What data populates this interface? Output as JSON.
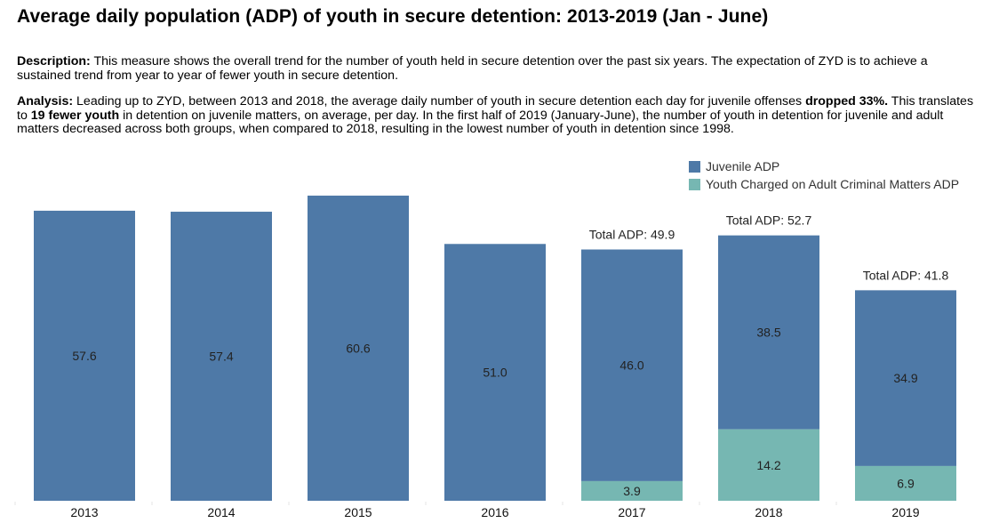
{
  "page": {
    "title": "Average daily population (ADP) of youth in secure detention: 2013-2019 (Jan - June)",
    "description": {
      "label": "Description:",
      "text": " This measure shows the overall trend for the number of youth held in secure detention over the past six years.  The expectation of ZYD is to achieve a sustained trend from year to year of fewer youth in secure detention."
    },
    "analysis": {
      "label": "Analysis:",
      "text1": " Leading up to ZYD, between 2013 and 2018, the average daily number of youth in secure detention each day for juvenile offenses ",
      "bold1": "dropped 33%.",
      "text2": " This translates to ",
      "bold2": "19 fewer youth",
      "text3": " in detention on juvenile matters, on average, per day. In the first half of 2019 (January-June), the number of youth in detention for juvenile and adult matters decreased across both groups, when compared to 2018, resulting in the lowest number of youth in detention since 1998."
    }
  },
  "chart_data": {
    "type": "bar",
    "stacked": true,
    "title": "Average daily population (ADP) of youth in secure detention: 2013-2019 (Jan - June)",
    "xlabel": "",
    "ylabel": "",
    "ylim": [
      0,
      62
    ],
    "grid": false,
    "legend_position": "top-right",
    "categories": [
      "2013",
      "2014",
      "2015",
      "2016",
      "2017",
      "2018",
      "2019"
    ],
    "series": [
      {
        "name": "Juvenile ADP",
        "color": "#4e79a7",
        "values": [
          57.6,
          57.4,
          60.6,
          51.0,
          46.0,
          38.5,
          34.9
        ],
        "labels": [
          "57.6",
          "57.4",
          "60.6",
          "51.0",
          "46.0",
          "38.5",
          "34.9"
        ]
      },
      {
        "name": "Youth Charged on Adult Criminal Matters ADP",
        "color": "#76b7b2",
        "values": [
          0,
          0,
          0,
          0,
          3.9,
          14.2,
          6.9
        ],
        "labels": [
          "",
          "",
          "",
          "",
          "3.9",
          "14.2",
          "6.9"
        ]
      }
    ],
    "totals": [
      "",
      "",
      "",
      "",
      "Total ADP: 49.9",
      "Total ADP: 52.7",
      "Total ADP: 41.8"
    ]
  }
}
